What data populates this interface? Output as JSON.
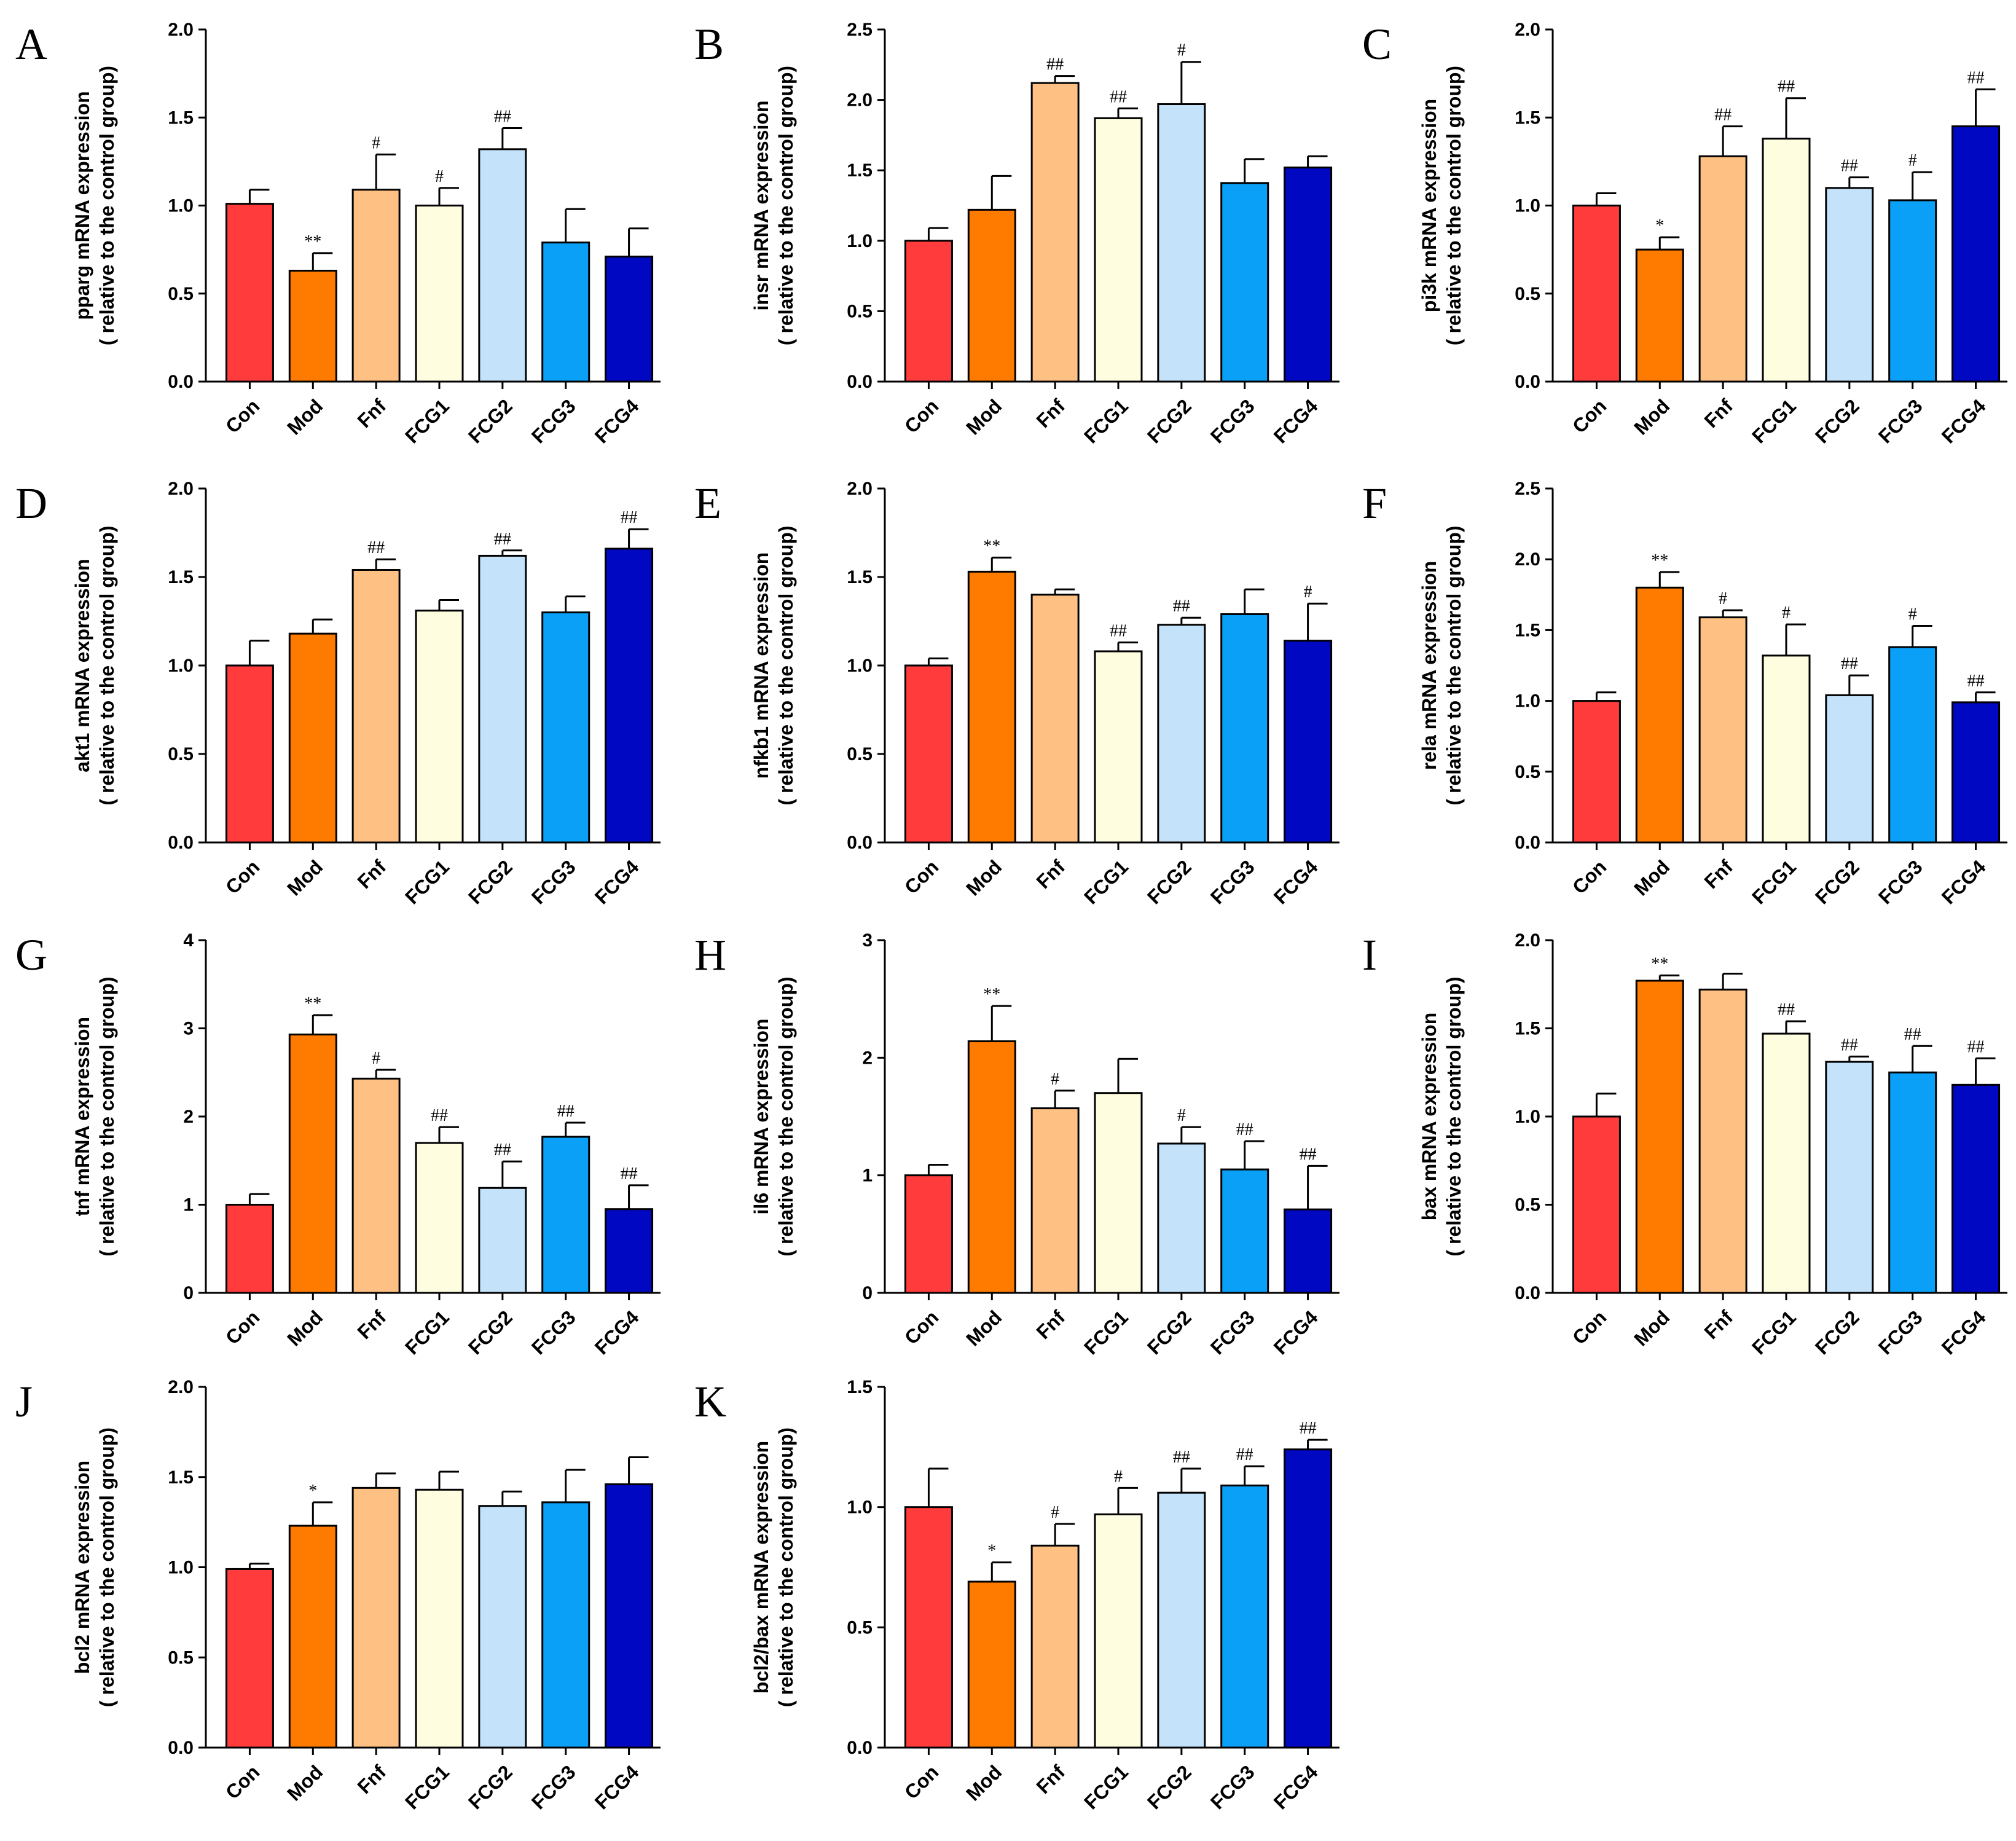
{
  "palette": [
    "#ff3b3b",
    "#ff7b00",
    "#ffc183",
    "#fffde0",
    "#c4e2fa",
    "#0aa0f7",
    "#0008c2"
  ],
  "chart_data": [
    {
      "panel": "A",
      "type": "bar",
      "ylabel": "pparg mRNA expression",
      "ylabel2": "( relative to the control group)",
      "ylim": [
        0,
        2.0
      ],
      "yticks": [
        "0.0",
        "0.5",
        "1.0",
        "1.5",
        "2.0"
      ],
      "categories": [
        "Con",
        "Mod",
        "Fnf",
        "FCG1",
        "FCG2",
        "FCG3",
        "FCG4"
      ],
      "values": [
        1.01,
        0.63,
        1.09,
        1.0,
        1.32,
        0.79,
        0.71
      ],
      "errors": [
        0.08,
        0.1,
        0.2,
        0.1,
        0.12,
        0.19,
        0.16
      ],
      "significance": [
        "",
        "**",
        "#",
        "#",
        "##",
        "",
        ""
      ]
    },
    {
      "panel": "B",
      "type": "bar",
      "ylabel": "insr mRNA expression",
      "ylabel2": "( relative to the control group)",
      "ylim": [
        0,
        2.5
      ],
      "yticks": [
        "0.0",
        "0.5",
        "1.0",
        "1.5",
        "2.0",
        "2.5"
      ],
      "categories": [
        "Con",
        "Mod",
        "Fnf",
        "FCG1",
        "FCG2",
        "FCG3",
        "FCG4"
      ],
      "values": [
        1.0,
        1.22,
        2.12,
        1.87,
        1.97,
        1.41,
        1.52
      ],
      "errors": [
        0.09,
        0.24,
        0.05,
        0.07,
        0.3,
        0.17,
        0.08
      ],
      "significance": [
        "",
        "",
        "##",
        "##",
        "#",
        "",
        ""
      ]
    },
    {
      "panel": "C",
      "type": "bar",
      "ylabel": "pi3k mRNA expression",
      "ylabel2": "( relative to the control group)",
      "ylim": [
        0,
        2.0
      ],
      "yticks": [
        "0.0",
        "0.5",
        "1.0",
        "1.5",
        "2.0"
      ],
      "categories": [
        "Con",
        "Mod",
        "Fnf",
        "FCG1",
        "FCG2",
        "FCG3",
        "FCG4"
      ],
      "values": [
        1.0,
        0.75,
        1.28,
        1.38,
        1.1,
        1.03,
        1.45
      ],
      "errors": [
        0.07,
        0.07,
        0.17,
        0.23,
        0.06,
        0.16,
        0.21
      ],
      "significance": [
        "",
        "*",
        "##",
        "##",
        "##",
        "#",
        "##"
      ]
    },
    {
      "panel": "D",
      "type": "bar",
      "ylabel": "akt1 mRNA expression",
      "ylabel2": "( relative to the control group)",
      "ylim": [
        0,
        2.0
      ],
      "yticks": [
        "0.0",
        "0.5",
        "1.0",
        "1.5",
        "2.0"
      ],
      "categories": [
        "Con",
        "Mod",
        "Fnf",
        "FCG1",
        "FCG2",
        "FCG3",
        "FCG4"
      ],
      "values": [
        1.0,
        1.18,
        1.54,
        1.31,
        1.62,
        1.3,
        1.66
      ],
      "errors": [
        0.14,
        0.08,
        0.06,
        0.06,
        0.03,
        0.09,
        0.11
      ],
      "significance": [
        "",
        "",
        "##",
        "",
        "##",
        "",
        "##"
      ]
    },
    {
      "panel": "E",
      "type": "bar",
      "ylabel": "nfkb1 mRNA expression",
      "ylabel2": "( relative to the control group)",
      "ylim": [
        0,
        2.0
      ],
      "yticks": [
        "0.0",
        "0.5",
        "1.0",
        "1.5",
        "2.0"
      ],
      "categories": [
        "Con",
        "Mod",
        "Fnf",
        "FCG1",
        "FCG2",
        "FCG3",
        "FCG4"
      ],
      "values": [
        1.0,
        1.53,
        1.4,
        1.08,
        1.23,
        1.29,
        1.14
      ],
      "errors": [
        0.04,
        0.08,
        0.03,
        0.05,
        0.04,
        0.14,
        0.21
      ],
      "significance": [
        "",
        "**",
        "",
        "##",
        "##",
        "",
        "#"
      ]
    },
    {
      "panel": "F",
      "type": "bar",
      "ylabel": "rela mRNA expression",
      "ylabel2": "( relative to the control group)",
      "ylim": [
        0,
        2.5
      ],
      "yticks": [
        "0.0",
        "0.5",
        "1.0",
        "1.5",
        "2.0",
        "2.5"
      ],
      "categories": [
        "Con",
        "Mod",
        "Fnf",
        "FCG1",
        "FCG2",
        "FCG3",
        "FCG4"
      ],
      "values": [
        1.0,
        1.8,
        1.59,
        1.32,
        1.04,
        1.38,
        0.99
      ],
      "errors": [
        0.06,
        0.11,
        0.05,
        0.22,
        0.14,
        0.15,
        0.07
      ],
      "significance": [
        "",
        "**",
        "#",
        "#",
        "##",
        "#",
        "##"
      ]
    },
    {
      "panel": "G",
      "type": "bar",
      "ylabel": "tnf mRNA expression",
      "ylabel2": "( relative to the control group)",
      "ylim": [
        0,
        4
      ],
      "yticks": [
        "0",
        "1",
        "2",
        "3",
        "4"
      ],
      "categories": [
        "Con",
        "Mod",
        "Fnf",
        "FCG1",
        "FCG2",
        "FCG3",
        "FCG4"
      ],
      "values": [
        1.0,
        2.93,
        2.43,
        1.7,
        1.19,
        1.77,
        0.95
      ],
      "errors": [
        0.12,
        0.22,
        0.1,
        0.18,
        0.3,
        0.16,
        0.27
      ],
      "significance": [
        "",
        "**",
        "#",
        "##",
        "##",
        "##",
        "##"
      ]
    },
    {
      "panel": "H",
      "type": "bar",
      "ylabel": "il6 mRNA expression",
      "ylabel2": "( relative to the control group)",
      "ylim": [
        0,
        3
      ],
      "yticks": [
        "0",
        "1",
        "2",
        "3"
      ],
      "categories": [
        "Con",
        "Mod",
        "Fnf",
        "FCG1",
        "FCG2",
        "FCG3",
        "FCG4"
      ],
      "values": [
        1.0,
        2.14,
        1.57,
        1.7,
        1.27,
        1.05,
        0.71
      ],
      "errors": [
        0.09,
        0.3,
        0.15,
        0.29,
        0.14,
        0.24,
        0.37
      ],
      "significance": [
        "",
        "**",
        "#",
        "",
        "#",
        "##",
        "##"
      ]
    },
    {
      "panel": "I",
      "type": "bar",
      "ylabel": "bax mRNA expression",
      "ylabel2": "( relative to the control group)",
      "ylim": [
        0,
        2.0
      ],
      "yticks": [
        "0.0",
        "0.5",
        "1.0",
        "1.5",
        "2.0"
      ],
      "categories": [
        "Con",
        "Mod",
        "Fnf",
        "FCG1",
        "FCG2",
        "FCG3",
        "FCG4"
      ],
      "values": [
        1.0,
        1.77,
        1.72,
        1.47,
        1.31,
        1.25,
        1.18
      ],
      "errors": [
        0.13,
        0.03,
        0.09,
        0.07,
        0.03,
        0.15,
        0.15
      ],
      "significance": [
        "",
        "**",
        "",
        "##",
        "##",
        "##",
        "##"
      ]
    },
    {
      "panel": "J",
      "type": "bar",
      "ylabel": "bcl2 mRNA expression",
      "ylabel2": "( relative to the control group)",
      "ylim": [
        0,
        2.0
      ],
      "yticks": [
        "0.0",
        "0.5",
        "1.0",
        "1.5",
        "2.0"
      ],
      "categories": [
        "Con",
        "Mod",
        "Fnf",
        "FCG1",
        "FCG2",
        "FCG3",
        "FCG4"
      ],
      "values": [
        0.99,
        1.23,
        1.44,
        1.43,
        1.34,
        1.36,
        1.46
      ],
      "errors": [
        0.03,
        0.13,
        0.08,
        0.1,
        0.08,
        0.18,
        0.15
      ],
      "significance": [
        "",
        "*",
        "",
        "",
        "",
        "",
        ""
      ]
    },
    {
      "panel": "K",
      "type": "bar",
      "ylabel": "bcl2/bax mRNA expression",
      "ylabel2": "( relative to the control group)",
      "ylim": [
        0,
        1.5
      ],
      "yticks": [
        "0.0",
        "0.5",
        "1.0",
        "1.5"
      ],
      "categories": [
        "Con",
        "Mod",
        "Fnf",
        "FCG1",
        "FCG2",
        "FCG3",
        "FCG4"
      ],
      "values": [
        1.0,
        0.69,
        0.84,
        0.97,
        1.06,
        1.09,
        1.24
      ],
      "errors": [
        0.16,
        0.08,
        0.09,
        0.11,
        0.1,
        0.08,
        0.04
      ],
      "significance": [
        "",
        "*",
        "#",
        "#",
        "##",
        "##",
        "##"
      ]
    }
  ]
}
